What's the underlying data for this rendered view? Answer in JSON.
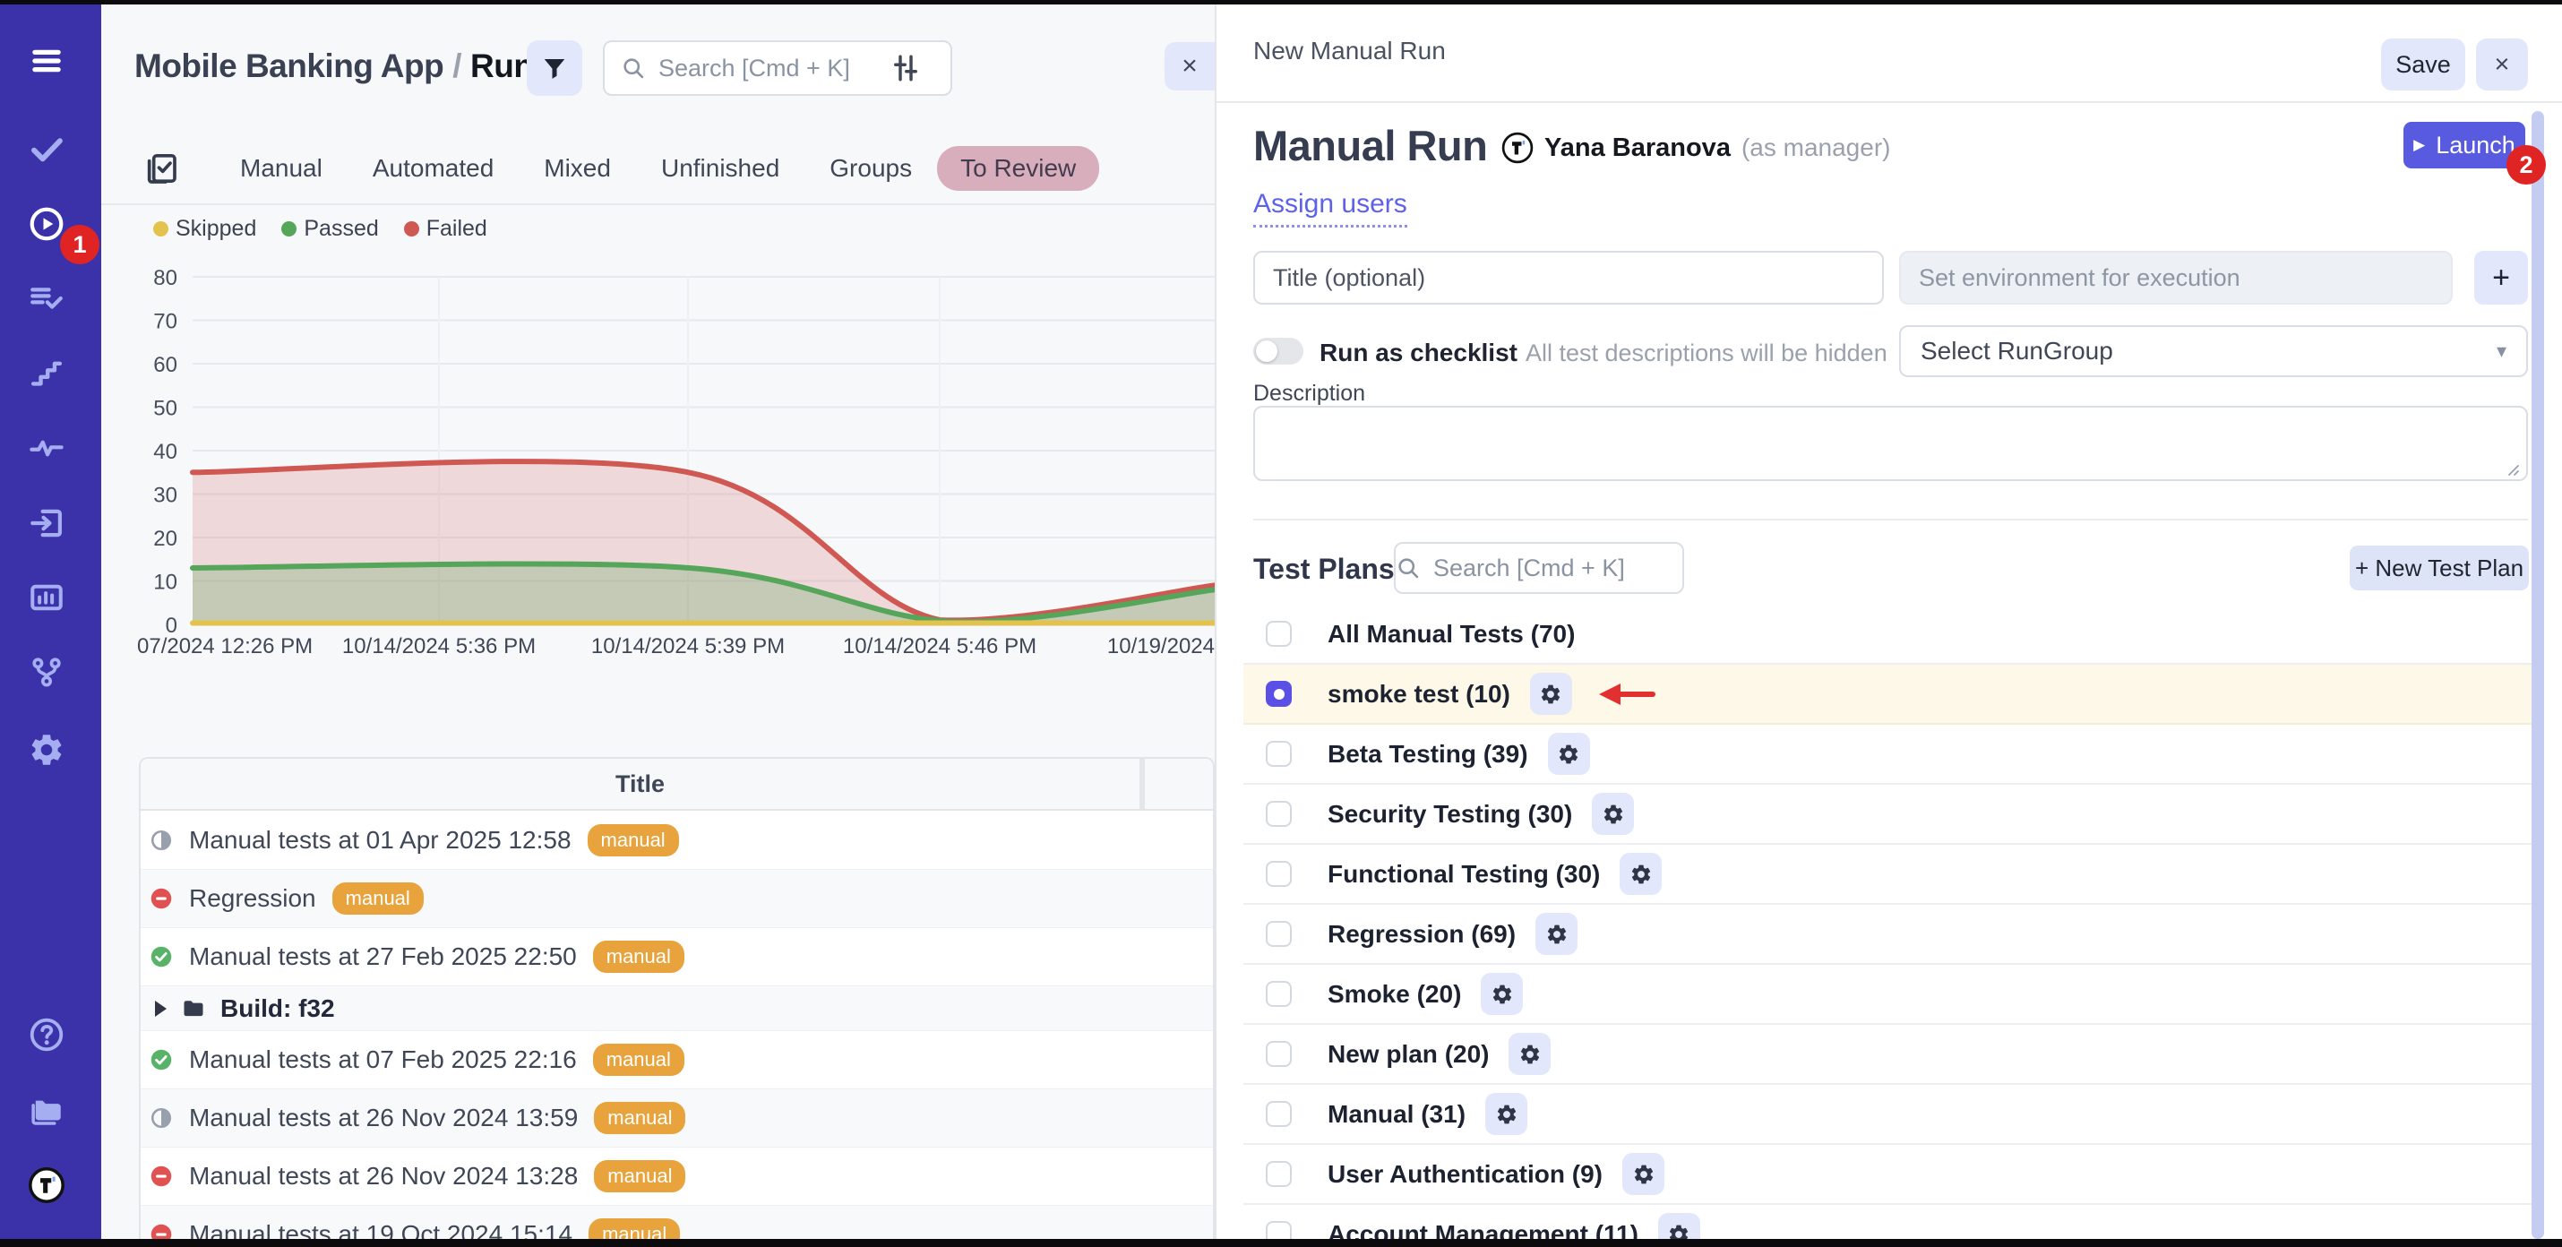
{
  "annotations": {
    "badge_runs": "1",
    "badge_launch": "2"
  },
  "sidebar": {
    "items": [
      {
        "name": "menu"
      },
      {
        "name": "tests"
      },
      {
        "name": "runs",
        "active": true,
        "badge": "1"
      },
      {
        "name": "test-plans"
      },
      {
        "name": "steps"
      },
      {
        "name": "activity"
      },
      {
        "name": "import"
      },
      {
        "name": "reports"
      },
      {
        "name": "branches"
      },
      {
        "name": "settings"
      }
    ],
    "bottom_items": [
      {
        "name": "help"
      },
      {
        "name": "projects"
      },
      {
        "name": "logo"
      }
    ]
  },
  "left_panel": {
    "breadcrumb": {
      "project": "Mobile Banking App",
      "separator": "/",
      "page": "Runs"
    },
    "search_placeholder": "Search [Cmd + K]",
    "close_label": "×",
    "tabs": [
      "Manual",
      "Automated",
      "Mixed",
      "Unfinished",
      "Groups",
      "To Review"
    ],
    "active_tab": "To Review",
    "table": {
      "columns": [
        "Title"
      ],
      "rows": [
        {
          "status": "pending",
          "title": "Manual tests at 01 Apr 2025 12:58",
          "badge": "manual"
        },
        {
          "status": "failed",
          "title": "Regression",
          "badge": "manual"
        },
        {
          "status": "passed",
          "title": "Manual tests at 27 Feb 2025 22:50",
          "badge": "manual"
        },
        {
          "type": "group",
          "title": "Build: f32"
        },
        {
          "status": "passed",
          "title": "Manual tests at 07 Feb 2025 22:16",
          "badge": "manual"
        },
        {
          "status": "pending",
          "title": "Manual tests at 26 Nov 2024 13:59",
          "badge": "manual"
        },
        {
          "status": "failed",
          "title": "Manual tests at 26 Nov 2024 13:28",
          "badge": "manual"
        },
        {
          "status": "failed",
          "title": "Manual tests at 19 Oct 2024 15:14",
          "badge": "manual"
        }
      ]
    }
  },
  "chart_data": {
    "type": "area",
    "title": "",
    "xlabel": "",
    "ylabel": "",
    "ylim": [
      0,
      80
    ],
    "y_ticks": [
      0,
      10,
      20,
      30,
      40,
      50,
      60,
      70,
      80
    ],
    "grid": true,
    "legend_position": "top-left",
    "x_tick_labels": [
      {
        "x": 33,
        "anchor": "start",
        "label": "07/2024 12:26 PM"
      },
      {
        "x": 370,
        "anchor": "middle",
        "label": "10/14/2024 5:36 PM"
      },
      {
        "x": 648,
        "anchor": "middle",
        "label": "10/14/2024 5:39 PM"
      },
      {
        "x": 929,
        "anchor": "middle",
        "label": "10/14/2024 5:46 PM"
      },
      {
        "x": 1236,
        "anchor": "end",
        "label": "10/19/2024"
      }
    ],
    "series": [
      {
        "name": "Skipped",
        "color": "#e3c24d",
        "fill_opacity": 0,
        "points": [
          [
            0,
            0.3
          ],
          [
            1,
            0.3
          ]
        ]
      },
      {
        "name": "Passed",
        "color": "#55a65a",
        "fill_opacity": 0.28,
        "points": [
          [
            0,
            13
          ],
          [
            0.485,
            13
          ],
          [
            0.745,
            0.6
          ],
          [
            1,
            8
          ]
        ]
      },
      {
        "name": "Failed",
        "color": "#d05853",
        "fill_opacity": 0.2,
        "points": [
          [
            0,
            35
          ],
          [
            0.485,
            35
          ],
          [
            0.731,
            1
          ],
          [
            1,
            9
          ]
        ]
      }
    ]
  },
  "right_panel": {
    "header": {
      "title": "New Manual Run",
      "save_label": "Save",
      "close_label": "×"
    },
    "run": {
      "title": "Manual Run",
      "owner": "Yana Baranova",
      "role": "(as manager)",
      "launch_label": "Launch"
    },
    "assign_users_label": "Assign users",
    "form": {
      "title_placeholder": "Title (optional)",
      "env_placeholder": "Set environment for execution",
      "add_label": "+",
      "checklist_label": "Run as checklist",
      "checklist_hint": "All test descriptions will be hidden",
      "rungroup_value": "Select RunGroup",
      "description_label": "Description"
    },
    "test_plans": {
      "heading": "Test Plans",
      "search_placeholder": "Search [Cmd + K]",
      "new_button": "+ New Test Plan",
      "items": [
        {
          "label": "All Manual Tests (70)",
          "checked": false,
          "gear": false
        },
        {
          "label": "smoke test (10)",
          "checked": true,
          "gear": true,
          "highlighted": true,
          "arrow": true
        },
        {
          "label": "Beta Testing (39)",
          "checked": false,
          "gear": true
        },
        {
          "label": "Security Testing (30)",
          "checked": false,
          "gear": true
        },
        {
          "label": "Functional Testing (30)",
          "checked": false,
          "gear": true
        },
        {
          "label": "Regression (69)",
          "checked": false,
          "gear": true
        },
        {
          "label": "Smoke (20)",
          "checked": false,
          "gear": true
        },
        {
          "label": "New plan (20)",
          "checked": false,
          "gear": true
        },
        {
          "label": "Manual (31)",
          "checked": false,
          "gear": true
        },
        {
          "label": "User Authentication (9)",
          "checked": false,
          "gear": true
        },
        {
          "label": "Account Management (11)",
          "checked": false,
          "gear": true
        }
      ]
    }
  }
}
